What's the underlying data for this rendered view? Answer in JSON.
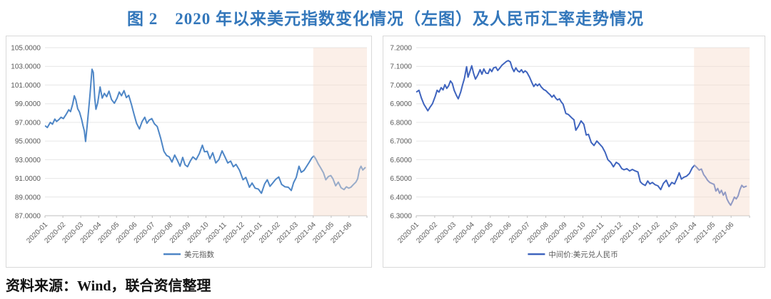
{
  "title": "图 2　2020 年以来美元指数变化情况（左图）及人民币汇率走势情况",
  "source_note": "资料来源：Wind，联合资信整理",
  "colors": {
    "title_text": "#3377bb",
    "gridline": "#e6e6e6",
    "axis_line": "#bfbfbf",
    "tick_label": "#595959",
    "panel_border": "#d9d9d9",
    "highlight_band": "#f7dccb",
    "source_text": "#111111"
  },
  "chart_data": [
    {
      "type": "line",
      "panel": "left",
      "series_name": "美元指数",
      "legend_position": "bottom",
      "grid": true,
      "line_color": "#4e86c6",
      "ylim": [
        87.0,
        105.0
      ],
      "xlim_months": [
        0,
        18
      ],
      "y_ticks": [
        87,
        89,
        91,
        93,
        95,
        97,
        99,
        101,
        103,
        105
      ],
      "y_tick_labels": [
        "87.0000",
        "89.0000",
        "91.0000",
        "93.0000",
        "95.0000",
        "97.0000",
        "99.0000",
        "101.0000",
        "103.0000",
        "105.0000"
      ],
      "x_tick_labels": [
        "2020-01",
        "2020-02",
        "2020-03",
        "2020-04",
        "2020-05",
        "2020-06",
        "2020-07",
        "2020-08",
        "2020-09",
        "2020-10",
        "2020-11",
        "2020-12",
        "2021-01",
        "2021-02",
        "2021-03",
        "2021-04",
        "2021-05",
        "2021-06"
      ],
      "highlight_band": {
        "start_month_index": 15,
        "end_month_index": 18,
        "start_label": "2021-04"
      },
      "points": [
        [
          0.03,
          96.6
        ],
        [
          0.13,
          96.45
        ],
        [
          0.3,
          97.0
        ],
        [
          0.42,
          96.8
        ],
        [
          0.55,
          97.35
        ],
        [
          0.65,
          97.1
        ],
        [
          0.78,
          97.3
        ],
        [
          0.9,
          97.55
        ],
        [
          1.03,
          97.4
        ],
        [
          1.18,
          97.85
        ],
        [
          1.33,
          98.35
        ],
        [
          1.43,
          98.15
        ],
        [
          1.55,
          98.95
        ],
        [
          1.64,
          99.85
        ],
        [
          1.73,
          99.4
        ],
        [
          1.83,
          98.45
        ],
        [
          1.93,
          98.1
        ],
        [
          2.05,
          97.3
        ],
        [
          2.13,
          96.6
        ],
        [
          2.2,
          96.1
        ],
        [
          2.27,
          94.95
        ],
        [
          2.35,
          96.5
        ],
        [
          2.44,
          98.3
        ],
        [
          2.52,
          100.0
        ],
        [
          2.63,
          102.7
        ],
        [
          2.7,
          102.35
        ],
        [
          2.78,
          99.6
        ],
        [
          2.85,
          98.4
        ],
        [
          2.95,
          99.1
        ],
        [
          3.08,
          100.8
        ],
        [
          3.2,
          99.6
        ],
        [
          3.32,
          100.1
        ],
        [
          3.45,
          99.75
        ],
        [
          3.58,
          100.35
        ],
        [
          3.72,
          99.45
        ],
        [
          3.88,
          99.05
        ],
        [
          4.03,
          99.6
        ],
        [
          4.15,
          100.25
        ],
        [
          4.28,
          99.85
        ],
        [
          4.42,
          100.4
        ],
        [
          4.55,
          99.65
        ],
        [
          4.68,
          99.9
        ],
        [
          4.83,
          98.95
        ],
        [
          4.98,
          97.85
        ],
        [
          5.12,
          96.9
        ],
        [
          5.28,
          96.3
        ],
        [
          5.43,
          97.1
        ],
        [
          5.58,
          97.55
        ],
        [
          5.7,
          96.9
        ],
        [
          5.83,
          97.25
        ],
        [
          5.97,
          97.4
        ],
        [
          6.12,
          96.85
        ],
        [
          6.28,
          96.55
        ],
        [
          6.47,
          95.3
        ],
        [
          6.65,
          93.9
        ],
        [
          6.8,
          93.45
        ],
        [
          6.95,
          93.3
        ],
        [
          7.1,
          92.75
        ],
        [
          7.25,
          93.5
        ],
        [
          7.4,
          92.95
        ],
        [
          7.55,
          92.3
        ],
        [
          7.7,
          93.25
        ],
        [
          7.83,
          92.45
        ],
        [
          7.97,
          92.25
        ],
        [
          8.12,
          92.85
        ],
        [
          8.27,
          93.3
        ],
        [
          8.45,
          93.0
        ],
        [
          8.63,
          93.65
        ],
        [
          8.8,
          94.55
        ],
        [
          8.92,
          93.85
        ],
        [
          9.07,
          93.9
        ],
        [
          9.22,
          93.1
        ],
        [
          9.38,
          93.75
        ],
        [
          9.55,
          92.65
        ],
        [
          9.72,
          93.0
        ],
        [
          9.9,
          93.95
        ],
        [
          10.05,
          93.35
        ],
        [
          10.22,
          92.65
        ],
        [
          10.38,
          92.85
        ],
        [
          10.53,
          92.25
        ],
        [
          10.68,
          92.5
        ],
        [
          10.88,
          91.85
        ],
        [
          11.07,
          90.85
        ],
        [
          11.23,
          91.1
        ],
        [
          11.43,
          90.05
        ],
        [
          11.58,
          90.5
        ],
        [
          11.75,
          89.95
        ],
        [
          11.93,
          89.85
        ],
        [
          12.1,
          89.4
        ],
        [
          12.28,
          90.4
        ],
        [
          12.43,
          90.85
        ],
        [
          12.58,
          90.15
        ],
        [
          12.73,
          90.5
        ],
        [
          12.9,
          90.9
        ],
        [
          13.07,
          91.15
        ],
        [
          13.23,
          90.35
        ],
        [
          13.42,
          90.1
        ],
        [
          13.6,
          90.05
        ],
        [
          13.77,
          89.7
        ],
        [
          13.9,
          90.55
        ],
        [
          14.05,
          91.1
        ],
        [
          14.2,
          92.3
        ],
        [
          14.33,
          91.65
        ],
        [
          14.48,
          91.85
        ],
        [
          14.63,
          92.3
        ],
        [
          14.78,
          92.75
        ],
        [
          14.92,
          93.2
        ],
        [
          15.03,
          93.4
        ],
        [
          15.15,
          93.05
        ],
        [
          15.28,
          92.55
        ],
        [
          15.42,
          92.1
        ],
        [
          15.57,
          91.6
        ],
        [
          15.7,
          90.85
        ],
        [
          15.85,
          91.2
        ],
        [
          15.98,
          91.3
        ],
        [
          16.1,
          90.95
        ],
        [
          16.25,
          90.2
        ],
        [
          16.4,
          90.6
        ],
        [
          16.55,
          90.0
        ],
        [
          16.72,
          89.8
        ],
        [
          16.85,
          90.1
        ],
        [
          16.98,
          89.95
        ],
        [
          17.1,
          90.05
        ],
        [
          17.25,
          90.35
        ],
        [
          17.38,
          90.6
        ],
        [
          17.48,
          90.95
        ],
        [
          17.58,
          91.95
        ],
        [
          17.67,
          92.3
        ],
        [
          17.77,
          91.9
        ],
        [
          17.9,
          92.15
        ]
      ]
    },
    {
      "type": "line",
      "panel": "right",
      "series_name": "中间价:美元兑人民币",
      "legend_position": "bottom",
      "grid": true,
      "line_color": "#3f64be",
      "ylim": [
        6.3,
        7.2
      ],
      "xlim_months": [
        0,
        18
      ],
      "y_ticks": [
        6.3,
        6.4,
        6.5,
        6.6,
        6.7,
        6.8,
        6.9,
        7.0,
        7.1,
        7.2
      ],
      "y_tick_labels": [
        "6.3000",
        "6.4000",
        "6.5000",
        "6.6000",
        "6.7000",
        "6.8000",
        "6.9000",
        "7.0000",
        "7.1000",
        "7.2000"
      ],
      "x_tick_labels": [
        "2020-01",
        "2020-02",
        "2020-03",
        "2020-04",
        "2020-05",
        "2020-06",
        "2020-07",
        "2020-08",
        "2020-09",
        "2020-10",
        "2020-11",
        "2020-12",
        "2021-01",
        "2021-02",
        "2021-03",
        "2021-04",
        "2021-05",
        "2021-06"
      ],
      "highlight_band": {
        "start_month_index": 15,
        "end_month_index": 18,
        "start_label": "2021-04"
      },
      "points": [
        [
          0.03,
          6.964
        ],
        [
          0.15,
          6.972
        ],
        [
          0.28,
          6.93
        ],
        [
          0.42,
          6.896
        ],
        [
          0.53,
          6.878
        ],
        [
          0.63,
          6.862
        ],
        [
          0.75,
          6.882
        ],
        [
          0.88,
          6.9
        ],
        [
          1.03,
          6.94
        ],
        [
          1.13,
          6.972
        ],
        [
          1.23,
          6.962
        ],
        [
          1.35,
          6.986
        ],
        [
          1.45,
          6.974
        ],
        [
          1.55,
          7.002
        ],
        [
          1.65,
          6.982
        ],
        [
          1.75,
          6.996
        ],
        [
          1.85,
          7.022
        ],
        [
          1.95,
          7.008
        ],
        [
          2.05,
          6.972
        ],
        [
          2.17,
          6.945
        ],
        [
          2.27,
          6.926
        ],
        [
          2.4,
          6.962
        ],
        [
          2.5,
          7.0
        ],
        [
          2.6,
          7.035
        ],
        [
          2.72,
          7.098
        ],
        [
          2.8,
          7.042
        ],
        [
          2.9,
          7.072
        ],
        [
          3.0,
          7.103
        ],
        [
          3.1,
          7.062
        ],
        [
          3.2,
          7.032
        ],
        [
          3.32,
          7.052
        ],
        [
          3.45,
          7.082
        ],
        [
          3.55,
          7.058
        ],
        [
          3.65,
          7.086
        ],
        [
          3.77,
          7.064
        ],
        [
          3.88,
          7.062
        ],
        [
          3.98,
          7.086
        ],
        [
          4.08,
          7.072
        ],
        [
          4.18,
          7.092
        ],
        [
          4.3,
          7.096
        ],
        [
          4.4,
          7.078
        ],
        [
          4.52,
          7.092
        ],
        [
          4.63,
          7.106
        ],
        [
          4.75,
          7.116
        ],
        [
          4.87,
          7.126
        ],
        [
          4.97,
          7.131
        ],
        [
          5.08,
          7.124
        ],
        [
          5.18,
          7.092
        ],
        [
          5.28,
          7.072
        ],
        [
          5.38,
          7.092
        ],
        [
          5.48,
          7.076
        ],
        [
          5.58,
          7.07
        ],
        [
          5.68,
          7.082
        ],
        [
          5.78,
          7.066
        ],
        [
          5.88,
          7.076
        ],
        [
          5.98,
          7.068
        ],
        [
          6.12,
          7.042
        ],
        [
          6.25,
          7.012
        ],
        [
          6.35,
          6.992
        ],
        [
          6.45,
          7.006
        ],
        [
          6.55,
          6.996
        ],
        [
          6.65,
          7.006
        ],
        [
          6.75,
          6.99
        ],
        [
          6.88,
          6.976
        ],
        [
          7.0,
          6.97
        ],
        [
          7.12,
          6.958
        ],
        [
          7.23,
          6.948
        ],
        [
          7.33,
          6.935
        ],
        [
          7.43,
          6.946
        ],
        [
          7.53,
          6.93
        ],
        [
          7.63,
          6.92
        ],
        [
          7.73,
          6.926
        ],
        [
          7.83,
          6.91
        ],
        [
          7.93,
          6.898
        ],
        [
          8.08,
          6.848
        ],
        [
          8.22,
          6.842
        ],
        [
          8.38,
          6.826
        ],
        [
          8.52,
          6.814
        ],
        [
          8.62,
          6.758
        ],
        [
          8.75,
          6.778
        ],
        [
          8.9,
          6.808
        ],
        [
          9.05,
          6.79
        ],
        [
          9.18,
          6.732
        ],
        [
          9.3,
          6.736
        ],
        [
          9.45,
          6.692
        ],
        [
          9.6,
          6.676
        ],
        [
          9.75,
          6.7
        ],
        [
          9.9,
          6.684
        ],
        [
          10.05,
          6.668
        ],
        [
          10.2,
          6.64
        ],
        [
          10.35,
          6.6
        ],
        [
          10.5,
          6.586
        ],
        [
          10.65,
          6.562
        ],
        [
          10.8,
          6.586
        ],
        [
          10.95,
          6.576
        ],
        [
          11.1,
          6.552
        ],
        [
          11.22,
          6.546
        ],
        [
          11.37,
          6.552
        ],
        [
          11.52,
          6.54
        ],
        [
          11.67,
          6.548
        ],
        [
          11.82,
          6.54
        ],
        [
          11.97,
          6.534
        ],
        [
          12.1,
          6.482
        ],
        [
          12.22,
          6.47
        ],
        [
          12.37,
          6.462
        ],
        [
          12.5,
          6.486
        ],
        [
          12.62,
          6.47
        ],
        [
          12.75,
          6.478
        ],
        [
          12.9,
          6.466
        ],
        [
          13.05,
          6.46
        ],
        [
          13.2,
          6.44
        ],
        [
          13.35,
          6.474
        ],
        [
          13.5,
          6.49
        ],
        [
          13.65,
          6.456
        ],
        [
          13.8,
          6.478
        ],
        [
          13.95,
          6.47
        ],
        [
          14.08,
          6.5
        ],
        [
          14.2,
          6.53
        ],
        [
          14.32,
          6.496
        ],
        [
          14.45,
          6.506
        ],
        [
          14.6,
          6.512
        ],
        [
          14.75,
          6.526
        ],
        [
          14.9,
          6.556
        ],
        [
          15.03,
          6.57
        ],
        [
          15.15,
          6.558
        ],
        [
          15.28,
          6.544
        ],
        [
          15.4,
          6.55
        ],
        [
          15.52,
          6.52
        ],
        [
          15.63,
          6.506
        ],
        [
          15.73,
          6.49
        ],
        [
          15.85,
          6.478
        ],
        [
          15.98,
          6.472
        ],
        [
          16.08,
          6.468
        ],
        [
          16.18,
          6.432
        ],
        [
          16.28,
          6.446
        ],
        [
          16.38,
          6.42
        ],
        [
          16.48,
          6.436
        ],
        [
          16.58,
          6.41
        ],
        [
          16.68,
          6.426
        ],
        [
          16.78,
          6.39
        ],
        [
          16.88,
          6.37
        ],
        [
          16.98,
          6.356
        ],
        [
          17.08,
          6.376
        ],
        [
          17.18,
          6.4
        ],
        [
          17.28,
          6.39
        ],
        [
          17.38,
          6.406
        ],
        [
          17.48,
          6.44
        ],
        [
          17.58,
          6.463
        ],
        [
          17.68,
          6.452
        ],
        [
          17.82,
          6.458
        ]
      ]
    }
  ]
}
